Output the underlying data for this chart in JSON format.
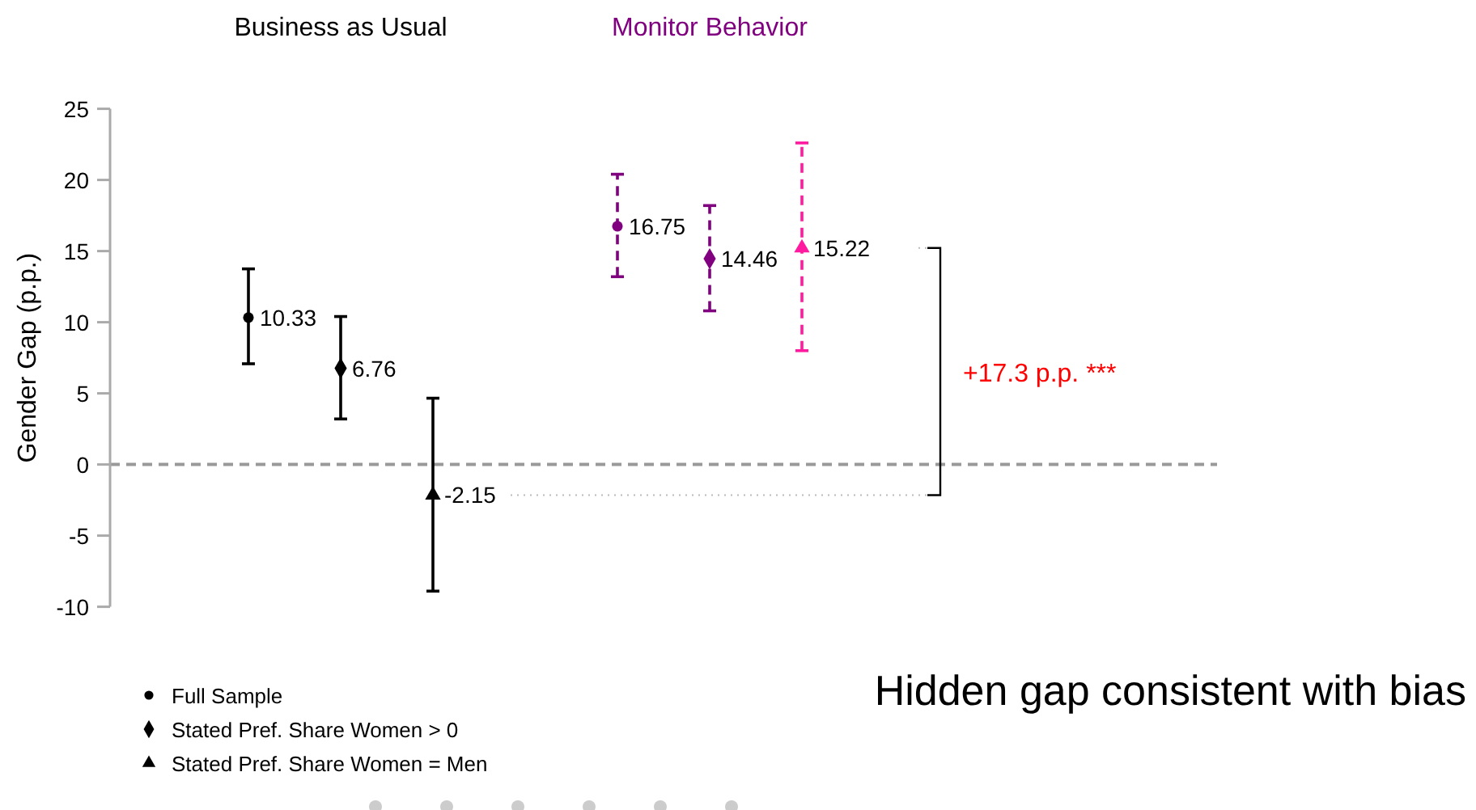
{
  "chart_data": {
    "type": "scatter",
    "ylabel": "Gender Gap (p.p.)",
    "categories": [
      null,
      null,
      null,
      null,
      null,
      null,
      null,
      null,
      null,
      null,
      null,
      null
    ],
    "ylim": [
      -10,
      25
    ],
    "yticks": [
      -10,
      -5,
      0,
      5,
      10,
      15,
      20,
      25
    ],
    "tick_labels": "y",
    "grid": false,
    "legend": "bottom left",
    "data_labels": true,
    "annotations": [
      "Business as Usual",
      "Monitor Behavior",
      "+17.3 p.p. ***",
      "Hidden gap consistent with bias"
    ],
    "series": [
      {
        "name": "Full Sample",
        "color": "#000000",
        "marker": "circle",
        "line_style": "solid",
        "values": [
          null,
          10.33,
          null,
          null,
          null,
          null,
          null,
          null,
          null,
          null,
          null,
          null
        ],
        "errors": [
          null,
          [
            7.08,
            13.75
          ],
          null,
          null,
          null,
          null,
          null,
          null,
          null,
          null,
          null,
          null
        ]
      },
      {
        "name": "Stated Pref. Share Women > 0",
        "color": "#000000",
        "marker": "diamond",
        "line_style": "solid",
        "values": [
          null,
          null,
          6.76,
          null,
          null,
          null,
          null,
          null,
          null,
          null,
          null,
          null
        ],
        "errors": [
          null,
          null,
          [
            3.2,
            10.4
          ],
          null,
          null,
          null,
          null,
          null,
          null,
          null,
          null,
          null
        ]
      },
      {
        "name": "Stated Pref. Share Women = Men",
        "color": "#000000",
        "marker": "triangle",
        "line_style": "solid",
        "values": [
          null,
          null,
          null,
          -2.15,
          null,
          null,
          null,
          null,
          null,
          null,
          null,
          null
        ],
        "errors": [
          null,
          null,
          null,
          [
            -8.9,
            4.66
          ],
          null,
          null,
          null,
          null,
          null,
          null,
          null,
          null
        ]
      },
      {
        "color": "#800080",
        "marker": "circle",
        "line_style": "dashed",
        "values": [
          null,
          null,
          null,
          null,
          null,
          16.75,
          null,
          null,
          null,
          null,
          null,
          null
        ],
        "errors": [
          null,
          null,
          null,
          null,
          null,
          [
            13.2,
            20.4
          ],
          null,
          null,
          null,
          null,
          null,
          null
        ]
      },
      {
        "color": "#800080",
        "marker": "diamond",
        "line_style": "dashed",
        "values": [
          null,
          null,
          null,
          null,
          null,
          null,
          14.46,
          null,
          null,
          null,
          null,
          null
        ],
        "errors": [
          null,
          null,
          null,
          null,
          null,
          null,
          [
            10.8,
            18.2
          ],
          null,
          null,
          null,
          null,
          null
        ]
      },
      {
        "color": "#ff1aa0",
        "marker": "triangle",
        "line_style": "dashed",
        "values": [
          null,
          null,
          null,
          null,
          null,
          null,
          null,
          15.22,
          null,
          null,
          null,
          null
        ],
        "errors": [
          null,
          null,
          null,
          null,
          null,
          null,
          null,
          [
            8.0,
            22.6
          ],
          null,
          null,
          null,
          null
        ]
      }
    ],
    "ref_lines": [
      {
        "axis": "y",
        "value": 0,
        "color": "#999999",
        "line_style": "dashed"
      }
    ]
  }
}
